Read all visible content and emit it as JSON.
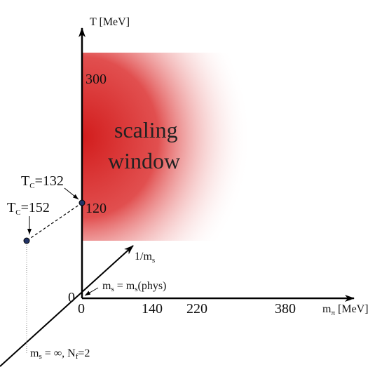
{
  "t_axis": {
    "label": "T [MeV]",
    "ticks": [
      "300",
      "120"
    ]
  },
  "m_pi_axis": {
    "label_symbol": "m",
    "label_subscript": "π",
    "label_unit": " [MeV]",
    "ticks": [
      "0",
      "140",
      "220",
      "380"
    ]
  },
  "ms_axis": {
    "label_main": "1/m",
    "label_subscript": "s"
  },
  "origin": "0",
  "window": {
    "line1": "scaling",
    "line2": "window"
  },
  "points": [
    {
      "symbol": "T",
      "subscript": "C",
      "value": "=132"
    },
    {
      "symbol": "T",
      "subscript": "C",
      "value": "=152"
    }
  ],
  "annotations": {
    "physical": [
      "m",
      "s",
      " = m",
      "s",
      "(phys)"
    ],
    "infinite": [
      "m",
      "s",
      " = ∞, N",
      "f",
      "=2"
    ]
  }
}
